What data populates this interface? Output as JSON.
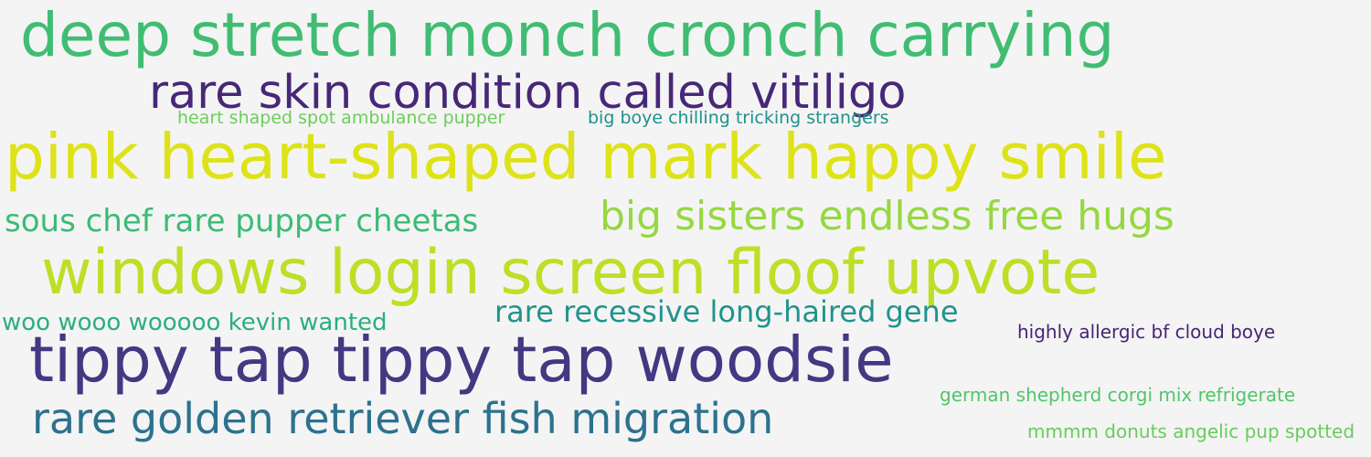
{
  "word_cloud": {
    "phrases": [
      {
        "text": "deep stretch monch cronch carrying",
        "color": "#40bd72"
      },
      {
        "text": "rare skin condition called vitiligo",
        "color": "#472777"
      },
      {
        "text": "heart shaped spot ambulance pupper",
        "color": "#6ccd5a"
      },
      {
        "text": "big boye chilling tricking strangers",
        "color": "#21918c"
      },
      {
        "text": "pink heart-shaped mark happy smile",
        "color": "#dde318"
      },
      {
        "text": "sous chef rare pupper cheetas",
        "color": "#3bbb75"
      },
      {
        "text": "big sisters endless free hugs",
        "color": "#95d840"
      },
      {
        "text": "windows login screen floof upvote",
        "color": "#bddf26"
      },
      {
        "text": "woo wooo wooooo kevin wanted",
        "color": "#29af7f"
      },
      {
        "text": "rare recessive long-haired gene",
        "color": "#1f948c"
      },
      {
        "text": "highly allergic bf cloud boye",
        "color": "#482475"
      },
      {
        "text": "tippy tap tippy tap woodsie",
        "color": "#453781"
      },
      {
        "text": "german shepherd corgi mix refrigerate",
        "color": "#52c569"
      },
      {
        "text": "rare golden retriever fish migration",
        "color": "#2c728e"
      },
      {
        "text": "mmmm donuts angelic pup spotted",
        "color": "#67cc5c"
      }
    ]
  }
}
